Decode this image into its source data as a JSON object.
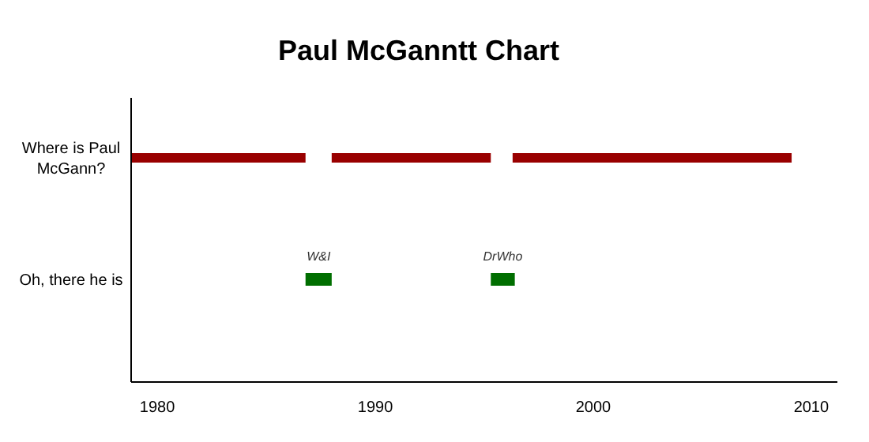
{
  "chart_data": {
    "type": "bar",
    "orientation": "horizontal",
    "title": "Paul McGanntt Chart",
    "categories": [
      "Where is Paul McGann?",
      "Oh, there he is"
    ],
    "series": [
      {
        "colors": [
          "#990000",
          "#006e00"
        ],
        "values": [
          8,
          1.2
        ],
        "base": [
          1978.8,
          1986.8
        ]
      },
      {
        "colors": [
          "#990000",
          "#006e00"
        ],
        "values": [
          7.3,
          1.1
        ],
        "base": [
          1988,
          1995.3
        ]
      },
      {
        "colors": [
          "#990000",
          null
        ],
        "values": [
          12.8,
          null
        ],
        "base": [
          1996.3,
          null
        ]
      }
    ],
    "xlim": [
      1978.8,
      2011.2
    ],
    "xticks": [
      1980,
      1990,
      2000,
      2010
    ],
    "annotations": [
      {
        "text": "W&I",
        "x": 1987.4,
        "y": "Oh, there he is"
      },
      {
        "text": "DrWho",
        "x": 1995.85,
        "y": "Oh, there he is"
      }
    ],
    "grid": false
  }
}
